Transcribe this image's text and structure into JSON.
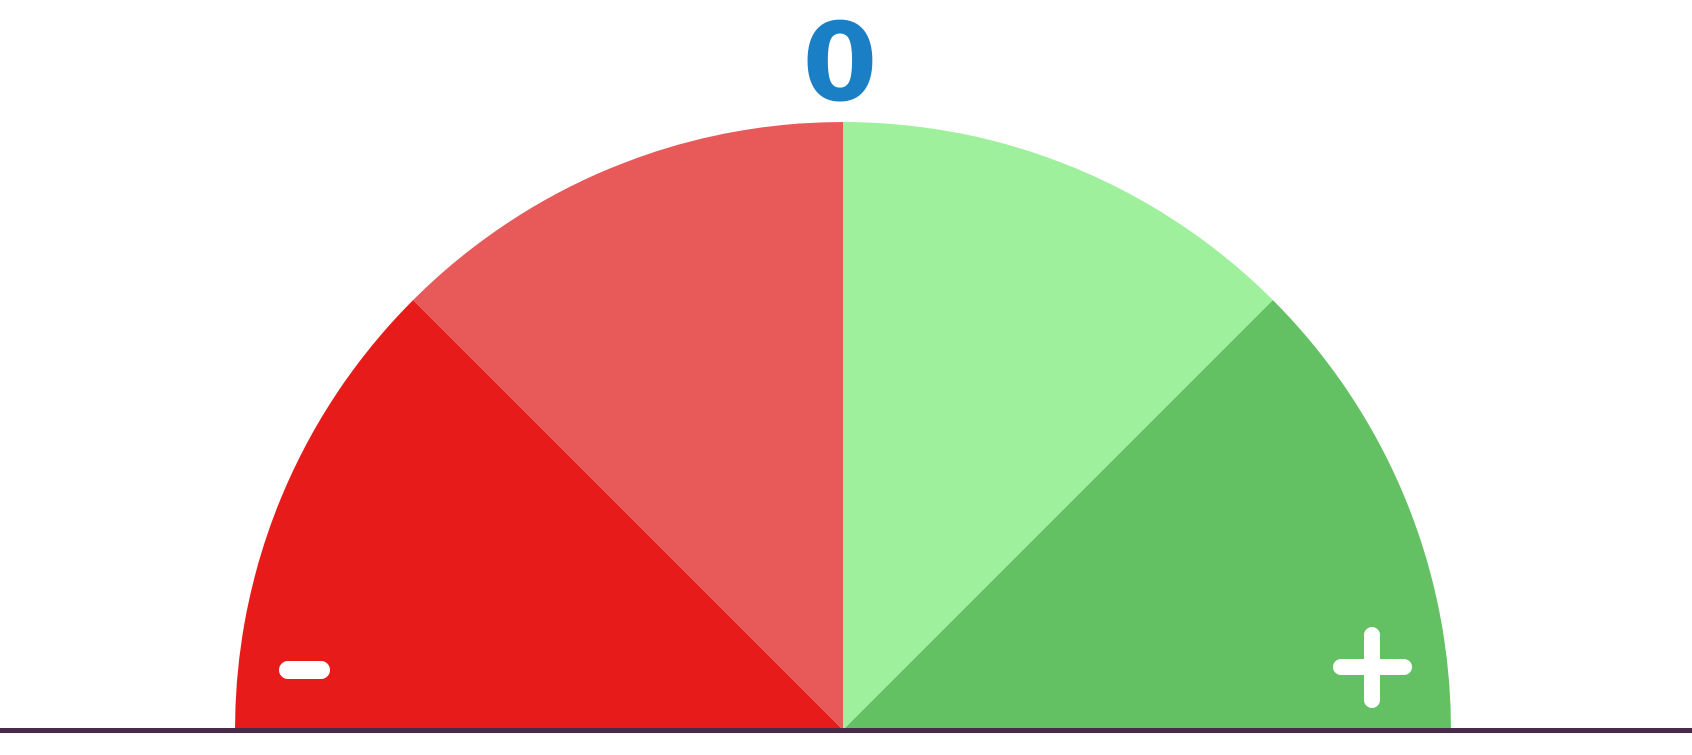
{
  "gauge": {
    "value": "0",
    "minus_label": "−",
    "plus_label": "+",
    "colors": {
      "value_text": "#1a7fc4",
      "segment_strong_negative": "#e81b1b",
      "segment_mild_negative": "#e85a5a",
      "segment_mild_positive": "#9ff09c",
      "segment_strong_positive": "#63c063",
      "symbol": "#ffffff",
      "baseline": "#4a2a4a"
    }
  }
}
